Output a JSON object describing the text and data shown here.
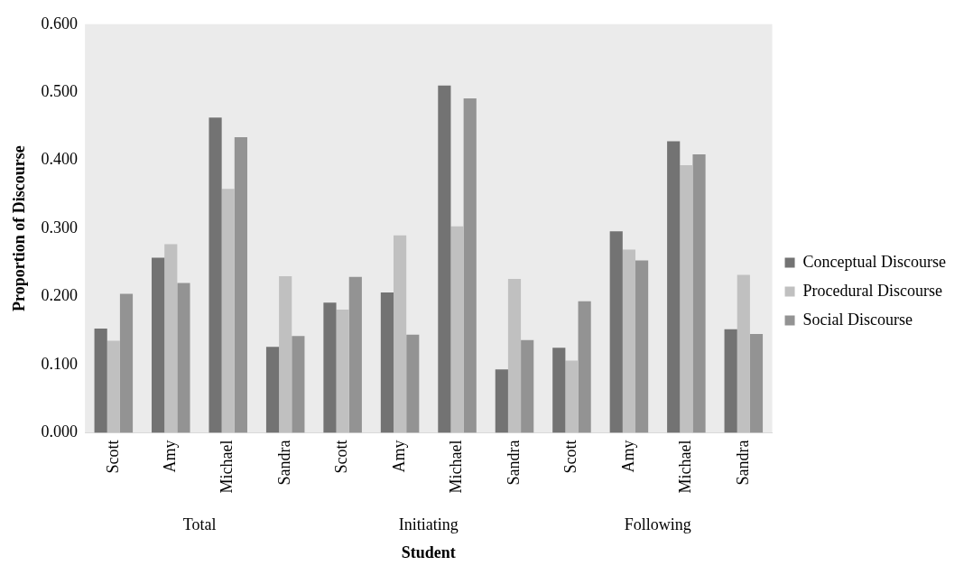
{
  "chart_data": {
    "type": "bar",
    "xlabel": "Student",
    "ylabel": "Proportion of Discourse",
    "categories": [
      "Scott",
      "Amy",
      "Michael",
      "Sandra",
      "Scott",
      "Amy",
      "Michael",
      "Sandra",
      "Scott",
      "Amy",
      "Michael",
      "Sandra"
    ],
    "annotations": [
      "Total",
      "Initiating",
      "Following"
    ],
    "series": [
      {
        "name": "Conceptual Discourse",
        "color": "#737373",
        "values": [
          0.153,
          0.257,
          0.463,
          0.126,
          0.191,
          0.206,
          0.51,
          0.093,
          0.125,
          0.296,
          0.428,
          0.152
        ]
      },
      {
        "name": "Procedural Discourse",
        "color": "#c0c0c0",
        "values": [
          0.135,
          0.277,
          0.358,
          0.23,
          0.181,
          0.29,
          0.303,
          0.226,
          0.106,
          0.269,
          0.393,
          0.232
        ]
      },
      {
        "name": "Social Discourse",
        "color": "#939393",
        "values": [
          0.204,
          0.22,
          0.434,
          0.142,
          0.229,
          0.144,
          0.491,
          0.136,
          0.193,
          0.253,
          0.409,
          0.145
        ]
      }
    ],
    "ylim": [
      0,
      0.6
    ],
    "yticks": [
      {
        "value": 0,
        "label": "0.000"
      },
      {
        "value": 0.1,
        "label": "0.100"
      },
      {
        "value": 0.2,
        "label": "0.200"
      },
      {
        "value": 0.3,
        "label": "0.300"
      },
      {
        "value": 0.4,
        "label": "0.400"
      },
      {
        "value": 0.5,
        "label": "0.500"
      },
      {
        "value": 0.6,
        "label": "0.600"
      }
    ],
    "grid": false,
    "legend": "right"
  }
}
